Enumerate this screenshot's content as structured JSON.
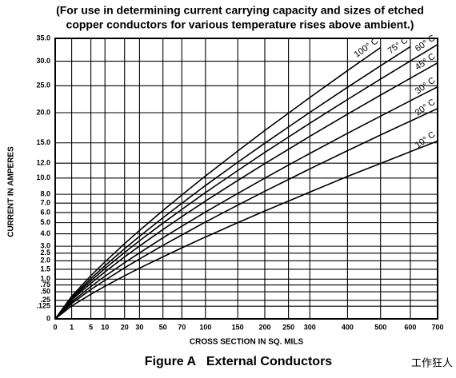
{
  "chart_data": {
    "type": "line",
    "title": [
      "(For use in determining current carrying capacity and sizes of etched",
      "copper conductors for various temperature rises above ambient.)"
    ],
    "x_label": "CROSS SECTION IN SQ. MILS",
    "y_label": "CURRENT IN AMPERES",
    "caption": "Figure A   External Conductors",
    "watermark": "工作狂人",
    "xscale": {
      "type": "power",
      "exponent": 0.48
    },
    "yscale": {
      "type": "power",
      "exponent": 0.55
    },
    "grid": true,
    "xlim": [
      0,
      700
    ],
    "ylim": [
      0,
      35
    ],
    "xticks": [
      0,
      1,
      5,
      10,
      20,
      30,
      50,
      70,
      100,
      150,
      200,
      250,
      300,
      400,
      500,
      600,
      700
    ],
    "yticks": [
      0,
      {
        "value": 0.125,
        "label": ".125"
      },
      {
        "value": 0.25,
        "label": ".25"
      },
      {
        "value": 0.5,
        "label": ".50"
      },
      {
        "value": 0.75,
        "label": ".75"
      },
      {
        "value": 1,
        "label": "1.0"
      },
      1.5,
      {
        "value": 2,
        "label": "2.0"
      },
      2.5,
      {
        "value": 3,
        "label": "3.0"
      },
      {
        "value": 4,
        "label": "4.0"
      },
      {
        "value": 5,
        "label": "5.0"
      },
      {
        "value": 6,
        "label": "6.0"
      },
      {
        "value": 7,
        "label": "7.0"
      },
      {
        "value": 8,
        "label": "8.0"
      },
      {
        "value": 10,
        "label": "10.0"
      },
      {
        "value": 12,
        "label": "12.0"
      },
      {
        "value": 15,
        "label": "15.0"
      },
      {
        "value": 20,
        "label": "20.0"
      },
      {
        "value": 25,
        "label": "25.0"
      },
      {
        "value": 30,
        "label": "30.0"
      },
      {
        "value": 35,
        "label": "35.0"
      }
    ],
    "x": [
      0,
      1,
      5,
      10,
      20,
      30,
      50,
      70,
      100,
      150,
      200,
      250,
      300,
      400,
      500,
      600,
      700
    ],
    "series": [
      {
        "name": "10° C",
        "color": "#000000",
        "values": [
          0,
          0.13,
          0.42,
          0.7,
          1.16,
          1.56,
          2.25,
          2.88,
          3.73,
          5.0,
          6.16,
          7.23,
          8.26,
          10.2,
          11.96,
          13.66,
          15.28
        ]
      },
      {
        "name": "20° C",
        "color": "#000000",
        "values": [
          0,
          0.18,
          0.58,
          0.95,
          1.58,
          2.11,
          3.06,
          3.9,
          5.06,
          6.78,
          8.36,
          9.81,
          11.21,
          13.81,
          16.24,
          18.53,
          20.74
        ]
      },
      {
        "name": "30° C",
        "color": "#000000",
        "values": [
          0,
          0.21,
          0.69,
          1.14,
          1.88,
          2.52,
          3.66,
          4.67,
          6.05,
          8.1,
          9.99,
          11.73,
          13.4,
          16.51,
          19.4,
          22.15,
          24.78
        ]
      },
      {
        "name": "45° C",
        "color": "#000000",
        "values": [
          0,
          0.26,
          0.82,
          1.36,
          2.25,
          3.02,
          4.37,
          5.58,
          7.23,
          9.69,
          11.94,
          14.02,
          16.02,
          19.74,
          23.2,
          26.48,
          29.63
        ]
      },
      {
        "name": "60° C",
        "color": "#000000",
        "values": [
          0,
          0.29,
          0.93,
          1.54,
          2.55,
          3.42,
          4.96,
          6.33,
          8.2,
          10.99,
          13.55,
          15.91,
          18.18,
          22.39,
          26.32,
          30.04,
          33.62
        ]
      },
      {
        "name": "75° C",
        "color": "#000000",
        "values": [
          0,
          0.32,
          1.03,
          1.7,
          2.82,
          3.78,
          5.47,
          6.98,
          9.05,
          12.13,
          14.95,
          17.55,
          20.05,
          24.7,
          29.03,
          33.14,
          null
        ]
      },
      {
        "name": "100° C",
        "color": "#000000",
        "values": [
          0,
          0.36,
          1.17,
          1.93,
          3.2,
          4.29,
          6.21,
          7.92,
          10.27,
          13.76,
          16.97,
          19.92,
          22.76,
          28.04,
          32.95,
          null,
          null
        ]
      }
    ]
  }
}
